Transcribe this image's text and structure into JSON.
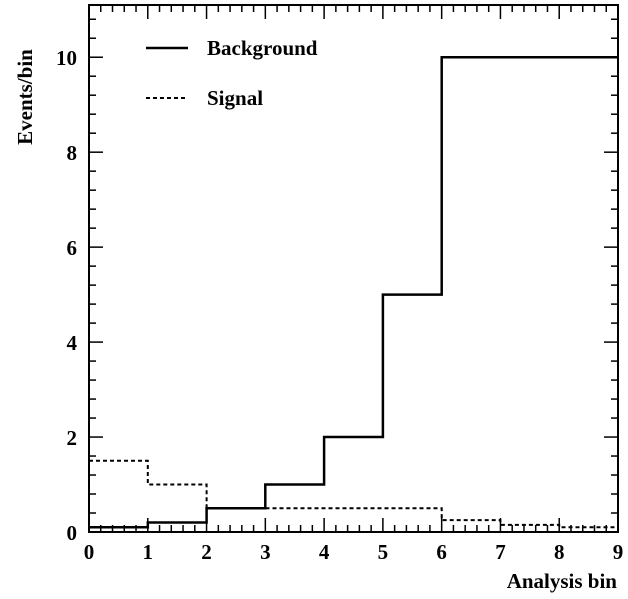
{
  "chart_data": {
    "type": "line",
    "title": "",
    "xlabel": "Analysis bin",
    "ylabel": "Events/bin",
    "xlim": [
      0,
      9
    ],
    "ylim": [
      0,
      11.1
    ],
    "grid": false,
    "legend_position": "top-left",
    "x_ticks": [
      0,
      1,
      2,
      3,
      4,
      5,
      6,
      7,
      8,
      9
    ],
    "x_tick_labels": [
      "0",
      "1",
      "2",
      "3",
      "4",
      "5",
      "6",
      "7",
      "8",
      "9"
    ],
    "y_ticks": [
      0,
      2,
      4,
      6,
      8,
      10
    ],
    "y_tick_labels": [
      "0",
      "2",
      "4",
      "6",
      "8",
      "10"
    ],
    "bin_edges": [
      0,
      1,
      2,
      3,
      4,
      5,
      6,
      7,
      8,
      9
    ],
    "series": [
      {
        "name": "Background",
        "style": "solid",
        "values": [
          0.1,
          0.2,
          0.5,
          1.0,
          2.0,
          5.0,
          10.0,
          10.0,
          10.0
        ]
      },
      {
        "name": "Signal",
        "style": "dotted",
        "values": [
          1.5,
          1.0,
          0.5,
          0.5,
          0.5,
          0.5,
          0.25,
          0.15,
          0.1
        ]
      }
    ]
  }
}
